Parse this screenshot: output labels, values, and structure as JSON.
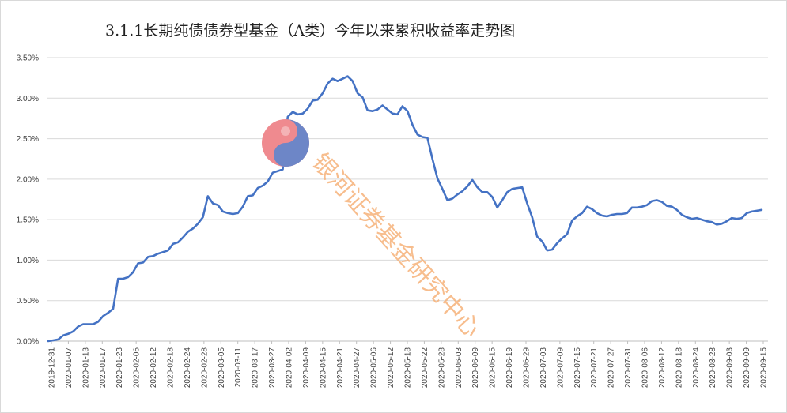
{
  "chart_data": {
    "type": "line",
    "title": "3.1.1长期纯债债券型基金（A类）今年以来累积收益率走势图",
    "xlabel": "",
    "ylabel": "",
    "ylim": [
      0,
      3.5
    ],
    "yticks": [
      "0.00%",
      "0.50%",
      "1.00%",
      "1.50%",
      "2.00%",
      "2.50%",
      "3.00%",
      "3.50%"
    ],
    "grid": "horizontal",
    "legend": "none",
    "line_color": "#4472c4",
    "xticks": [
      "2019-12-31",
      "2020-01-07",
      "2020-01-13",
      "2020-01-17",
      "2020-01-23",
      "2020-02-06",
      "2020-02-12",
      "2020-02-18",
      "2020-02-24",
      "2020-02-28",
      "2020-03-05",
      "2020-03-11",
      "2020-03-17",
      "2020-03-27",
      "2020-04-02",
      "2020-04-09",
      "2020-04-15",
      "2020-04-21",
      "2020-04-27",
      "2020-05-06",
      "2020-05-12",
      "2020-05-18",
      "2020-05-22",
      "2020-05-28",
      "2020-06-03",
      "2020-06-09",
      "2020-06-15",
      "2020-06-19",
      "2020-06-29",
      "2020-07-03",
      "2020-07-09",
      "2020-07-15",
      "2020-07-21",
      "2020-07-27",
      "2020-07-31",
      "2020-08-06",
      "2020-08-12",
      "2020-08-18",
      "2020-08-24",
      "2020-08-28",
      "2020-09-03",
      "2020-09-09",
      "2020-09-15"
    ],
    "values": [
      0.0,
      0.01,
      0.02,
      0.07,
      0.09,
      0.12,
      0.18,
      0.21,
      0.21,
      0.21,
      0.24,
      0.31,
      0.35,
      0.4,
      0.77,
      0.77,
      0.79,
      0.85,
      0.96,
      0.97,
      1.04,
      1.05,
      1.08,
      1.1,
      1.12,
      1.2,
      1.22,
      1.28,
      1.35,
      1.39,
      1.45,
      1.53,
      1.79,
      1.7,
      1.68,
      1.6,
      1.58,
      1.57,
      1.58,
      1.66,
      1.79,
      1.8,
      1.89,
      1.92,
      1.97,
      2.08,
      2.1,
      2.12,
      2.77,
      2.83,
      2.8,
      2.81,
      2.87,
      2.97,
      2.98,
      3.06,
      3.18,
      3.24,
      3.21,
      3.24,
      3.27,
      3.21,
      3.06,
      3.01,
      2.85,
      2.84,
      2.86,
      2.91,
      2.86,
      2.81,
      2.8,
      2.9,
      2.84,
      2.67,
      2.55,
      2.52,
      2.51,
      2.25,
      2.01,
      1.88,
      1.74,
      1.76,
      1.81,
      1.85,
      1.91,
      1.99,
      1.9,
      1.84,
      1.84,
      1.78,
      1.65,
      1.74,
      1.84,
      1.88,
      1.89,
      1.9,
      1.7,
      1.53,
      1.29,
      1.23,
      1.12,
      1.13,
      1.21,
      1.27,
      1.32,
      1.49,
      1.54,
      1.58,
      1.66,
      1.63,
      1.58,
      1.55,
      1.54,
      1.56,
      1.57,
      1.57,
      1.58,
      1.65,
      1.65,
      1.66,
      1.68,
      1.73,
      1.74,
      1.72,
      1.67,
      1.66,
      1.62,
      1.56,
      1.53,
      1.51,
      1.52,
      1.5,
      1.48,
      1.47,
      1.44,
      1.45,
      1.48,
      1.52,
      1.51,
      1.52,
      1.58,
      1.6,
      1.61,
      1.62
    ]
  },
  "watermark": {
    "text": "银河证券基金研究中心",
    "logo": "yinhe-logo-icon"
  }
}
